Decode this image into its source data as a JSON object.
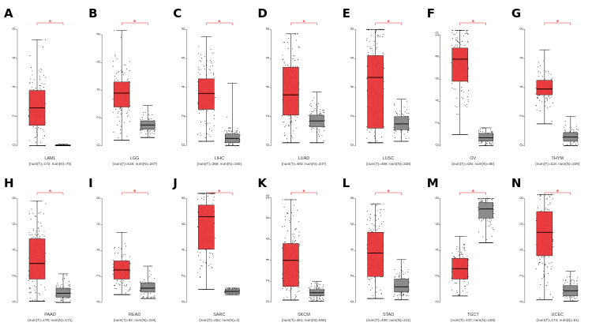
{
  "colors": {
    "tumor": "#e8282a",
    "normal": "#808080",
    "dots": "#000000",
    "significance": "#e8282a"
  },
  "chart_data": [
    {
      "type": "boxplot",
      "panel": "A",
      "label": "LAML",
      "counts": "(num(T)=173; num(N)=70)",
      "yticks": [
        0,
        2,
        4,
        6,
        8
      ],
      "ylim": [
        -0.3,
        8.4
      ],
      "significant": true,
      "tumor": {
        "min": 0.0,
        "q1": 1.4,
        "median": 2.6,
        "q3": 3.8,
        "max": 7.3
      },
      "normal": {
        "min": 0.0,
        "q1": 0.0,
        "median": 0.02,
        "q3": 0.05,
        "max": 0.1
      }
    },
    {
      "type": "boxplot",
      "panel": "B",
      "label": "LGG",
      "counts": "(num(T)=518; num(N)=207)",
      "yticks": [
        0,
        2,
        4,
        6,
        8
      ],
      "ylim": [
        -0.3,
        8.8
      ],
      "significant": true,
      "tumor": {
        "min": 0.4,
        "q1": 2.8,
        "median": 3.8,
        "q3": 4.6,
        "max": 8.3
      },
      "normal": {
        "min": 0.6,
        "q1": 1.2,
        "median": 1.5,
        "q3": 1.8,
        "max": 2.9
      }
    },
    {
      "type": "boxplot",
      "panel": "C",
      "label": "LIHC",
      "counts": "(num(T)=369; num(N)=160)",
      "yticks": [
        0,
        2,
        4,
        6,
        8
      ],
      "ylim": [
        -0.3,
        8.4
      ],
      "significant": true,
      "tumor": {
        "min": 0.3,
        "q1": 2.5,
        "median": 3.6,
        "q3": 4.6,
        "max": 7.5
      },
      "normal": {
        "min": 0.0,
        "q1": 0.2,
        "median": 0.5,
        "q3": 0.8,
        "max": 4.3
      }
    },
    {
      "type": "boxplot",
      "panel": "D",
      "label": "LUAD",
      "counts": "(num(T)=483; num(N)=347)",
      "yticks": [
        0,
        2,
        4,
        6,
        8
      ],
      "ylim": [
        -0.3,
        8.4
      ],
      "significant": true,
      "tumor": {
        "min": 0.2,
        "q1": 2.1,
        "median": 3.5,
        "q3": 5.4,
        "max": 7.7
      },
      "normal": {
        "min": 0.2,
        "q1": 1.3,
        "median": 1.7,
        "q3": 2.1,
        "max": 3.7
      }
    },
    {
      "type": "boxplot",
      "panel": "E",
      "label": "LUSC",
      "counts": "(num(T)=486; num(N)=338)",
      "yticks": [
        0,
        2,
        4,
        6,
        8
      ],
      "ylim": [
        -0.3,
        8.4
      ],
      "significant": true,
      "tumor": {
        "min": 0.2,
        "q1": 1.2,
        "median": 4.7,
        "q3": 6.2,
        "max": 8.0
      },
      "normal": {
        "min": 0.3,
        "q1": 1.1,
        "median": 1.5,
        "q3": 2.0,
        "max": 3.2
      }
    },
    {
      "type": "boxplot",
      "panel": "F",
      "label": "OV",
      "counts": "(num(T)=426; num(N)=88)",
      "yticks": [
        0,
        2,
        4,
        6,
        8,
        10
      ],
      "ylim": [
        -0.4,
        11.0
      ],
      "significant": true,
      "tumor": {
        "min": 1.0,
        "q1": 5.8,
        "median": 7.8,
        "q3": 8.8,
        "max": 10.4
      },
      "normal": {
        "min": 0.0,
        "q1": 0.4,
        "median": 0.7,
        "q3": 1.1,
        "max": 1.6
      }
    },
    {
      "type": "boxplot",
      "panel": "G",
      "label": "THYM",
      "counts": "(num(T)=118; num(N)=339)",
      "yticks": [
        0,
        2,
        4,
        6,
        8
      ],
      "ylim": [
        -0.3,
        8.4
      ],
      "significant": true,
      "tumor": {
        "min": 1.5,
        "q1": 3.5,
        "median": 3.9,
        "q3": 4.5,
        "max": 6.6
      },
      "normal": {
        "min": 0.0,
        "q1": 0.3,
        "median": 0.6,
        "q3": 0.9,
        "max": 2.0
      }
    },
    {
      "type": "boxplot",
      "panel": "H",
      "label": "PAAD",
      "counts": "(num(T)=179; num(N)=171)",
      "yticks": [
        0,
        2,
        4,
        6,
        8
      ],
      "ylim": [
        -0.3,
        8.4
      ],
      "significant": true,
      "tumor": {
        "min": 0.1,
        "q1": 1.8,
        "median": 3.0,
        "q3": 4.9,
        "max": 7.8
      },
      "normal": {
        "min": 0.0,
        "q1": 0.4,
        "median": 0.7,
        "q3": 1.1,
        "max": 2.2
      }
    },
    {
      "type": "boxplot",
      "panel": "I",
      "label": "READ",
      "counts": "(num(T)=92; num(N)=318)",
      "yticks": [
        0,
        2,
        4,
        6,
        8
      ],
      "ylim": [
        -0.3,
        8.4
      ],
      "significant": true,
      "tumor": {
        "min": 0.6,
        "q1": 1.8,
        "median": 2.5,
        "q3": 3.2,
        "max": 5.4
      },
      "normal": {
        "min": 0.3,
        "q1": 0.8,
        "median": 1.1,
        "q3": 1.5,
        "max": 2.8
      }
    },
    {
      "type": "boxplot",
      "panel": "J",
      "label": "SARC",
      "counts": "(num(T)=262; num(N)=2)",
      "yticks": [
        0,
        2,
        4,
        6,
        8
      ],
      "ylim": [
        -0.3,
        8.4
      ],
      "significant": true,
      "tumor": {
        "min": 1.0,
        "q1": 4.1,
        "median": 6.6,
        "q3": 7.5,
        "max": 8.4
      },
      "normal": {
        "min": 0.6,
        "q1": 0.7,
        "median": 0.85,
        "q3": 1.0,
        "max": 1.1
      }
    },
    {
      "type": "boxplot",
      "panel": "K",
      "label": "SKCM",
      "counts": "(num(T)=461; num(N)=558)",
      "yticks": [
        0,
        2,
        4,
        6,
        8,
        10
      ],
      "ylim": [
        -0.4,
        10.4
      ],
      "significant": true,
      "tumor": {
        "min": 0.2,
        "q1": 1.5,
        "median": 4.0,
        "q3": 5.6,
        "max": 9.8
      },
      "normal": {
        "min": 0.1,
        "q1": 0.6,
        "median": 0.9,
        "q3": 1.2,
        "max": 2.0
      }
    },
    {
      "type": "boxplot",
      "panel": "L",
      "label": "STAD",
      "counts": "(num(T)=408; num(N)=211)",
      "yticks": [
        0,
        2,
        4,
        6,
        8
      ],
      "ylim": [
        -0.3,
        8.4
      ],
      "significant": true,
      "tumor": {
        "min": 0.3,
        "q1": 2.0,
        "median": 3.8,
        "q3": 5.4,
        "max": 7.6
      },
      "normal": {
        "min": 0.2,
        "q1": 0.8,
        "median": 1.2,
        "q3": 1.8,
        "max": 3.3
      }
    },
    {
      "type": "boxplot",
      "panel": "M",
      "label": "TGCT",
      "counts": "(num(T)=137; num(N)=165)",
      "yticks": [
        0,
        2,
        4,
        6,
        8
      ],
      "ylim": [
        -0.3,
        8.4
      ],
      "significant": true,
      "tumor": {
        "min": 0.5,
        "q1": 1.8,
        "median": 2.6,
        "q3": 3.4,
        "max": 5.1
      },
      "normal": {
        "min": 4.6,
        "q1": 6.5,
        "median": 7.2,
        "q3": 7.7,
        "max": 8.0
      }
    },
    {
      "type": "boxplot",
      "panel": "N",
      "label": "UCEC",
      "counts": "(num(T)=174; num(N)=91)",
      "yticks": [
        0,
        2,
        4,
        6,
        8
      ],
      "ylim": [
        -0.3,
        8.4
      ],
      "significant": true,
      "tumor": {
        "min": 0.2,
        "q1": 3.6,
        "median": 5.4,
        "q3": 7.0,
        "max": 8.3
      },
      "normal": {
        "min": 0.1,
        "q1": 0.5,
        "median": 0.9,
        "q3": 1.3,
        "max": 2.4
      }
    }
  ]
}
